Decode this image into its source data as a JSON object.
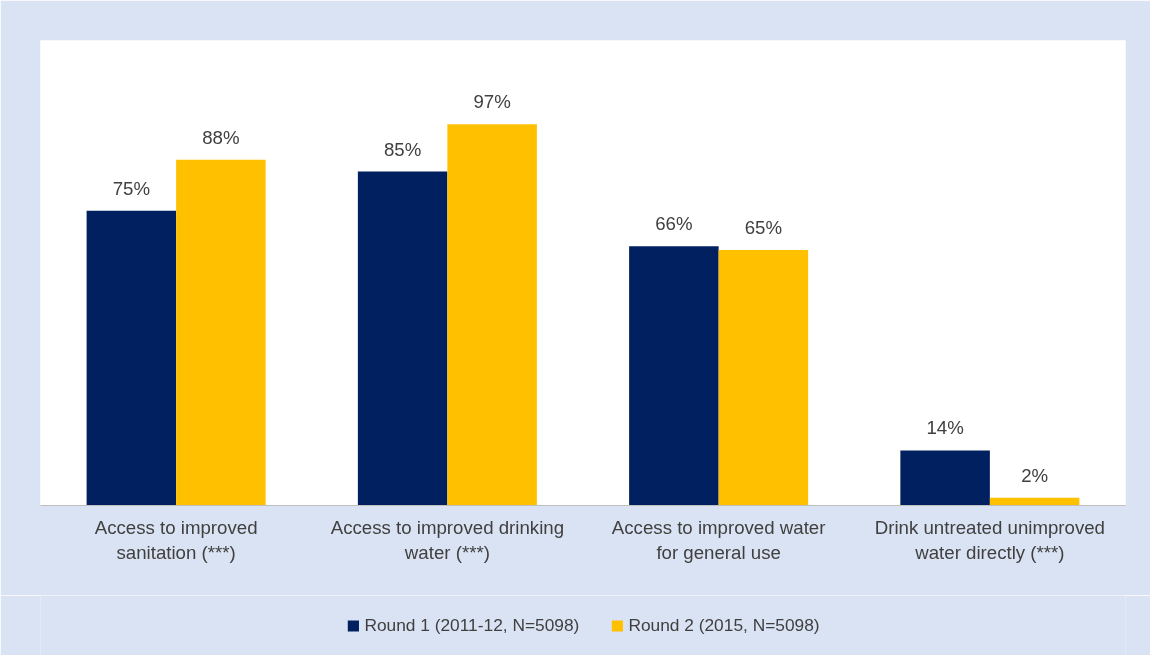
{
  "chart_data": {
    "type": "bar",
    "categories": [
      "Access to improved sanitation (***)",
      "Access to improved drinking water (***)",
      "Access to improved water for general use",
      "Drink untreated unimproved water directly (***)"
    ],
    "series": [
      {
        "name": "Round 1 (2011-12, N=5098)",
        "color": "#002060",
        "values": [
          75,
          85,
          66,
          14
        ],
        "value_labels": [
          "75%",
          "85%",
          "66%",
          "14%"
        ]
      },
      {
        "name": "Round 2 (2015, N=5098)",
        "color": "#ffc000",
        "values": [
          88,
          97,
          65,
          2
        ],
        "value_labels": [
          "88%",
          "97%",
          "65%",
          "2%"
        ]
      }
    ],
    "legend": "bottom",
    "grid": false
  }
}
